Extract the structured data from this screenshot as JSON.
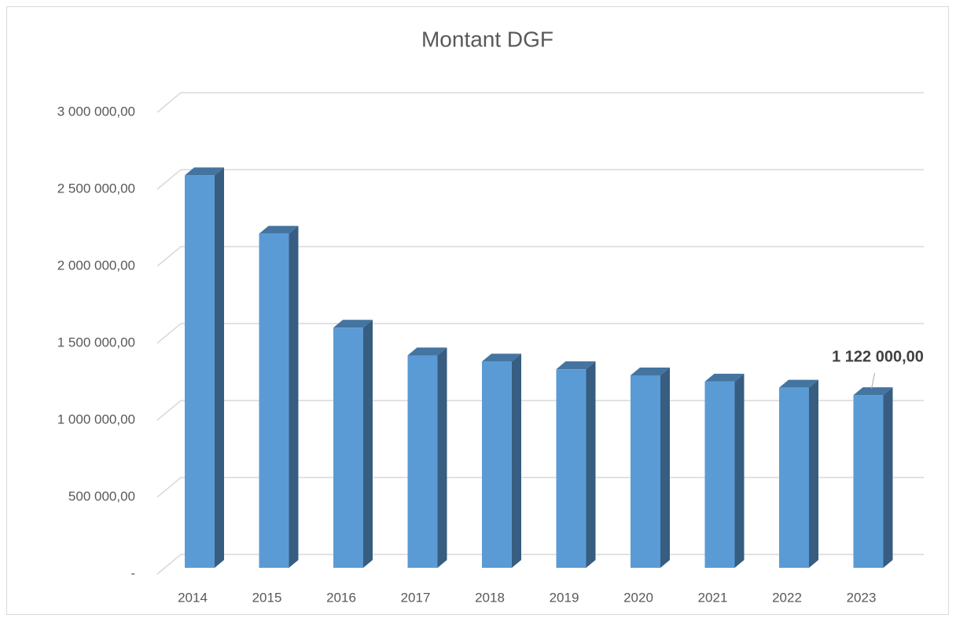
{
  "chart_data": {
    "type": "bar3d",
    "title": "Montant DGF",
    "categories": [
      "2014",
      "2015",
      "2016",
      "2017",
      "2018",
      "2019",
      "2020",
      "2021",
      "2022",
      "2023"
    ],
    "values": [
      2550000,
      2170000,
      1560000,
      1380000,
      1340000,
      1290000,
      1250000,
      1210000,
      1170000,
      1122000
    ],
    "value_labels": [
      null,
      null,
      null,
      null,
      null,
      null,
      null,
      null,
      null,
      "1 122 000,00"
    ],
    "color": "#5b9bd5",
    "ylim": [
      0,
      3000000
    ],
    "yticks": [
      {
        "value": 0,
        "label": "-"
      },
      {
        "value": 500000,
        "label": "500 000,00"
      },
      {
        "value": 1000000,
        "label": "1 000 000,00"
      },
      {
        "value": 1500000,
        "label": "1 500 000,00"
      },
      {
        "value": 2000000,
        "label": "2 000 000,00"
      },
      {
        "value": 2500000,
        "label": "2 500 000,00"
      },
      {
        "value": 3000000,
        "label": "3 000 000,00"
      }
    ],
    "grid": true
  }
}
